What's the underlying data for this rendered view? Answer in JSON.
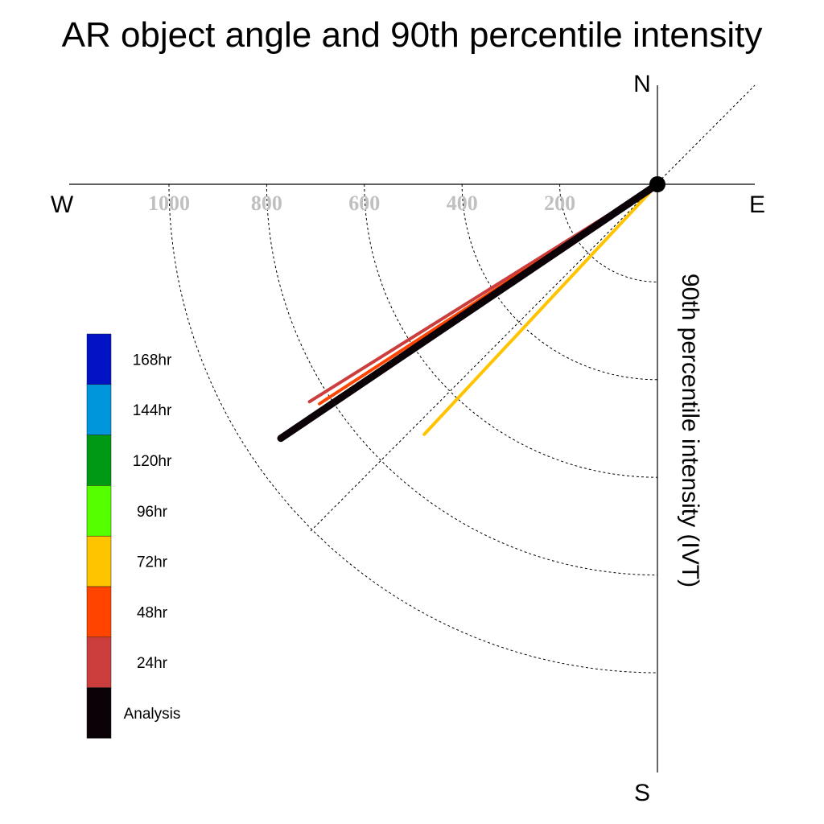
{
  "chart_data": {
    "type": "polar-vector",
    "title": "AR object angle and 90th percentile intensity",
    "ylabel": "90th percentile intensity (IVT)",
    "compass": {
      "north": "N",
      "south": "S",
      "east": "E",
      "west": "W"
    },
    "radial_ticks": [
      200,
      400,
      600,
      800,
      1000
    ],
    "radial_range": [
      0,
      1200
    ],
    "radial_circles": [
      200,
      400,
      600,
      800,
      1000
    ],
    "series": [
      {
        "name": "24hr",
        "color": "#cc3d3d",
        "magnitude": 840,
        "direction_deg": 238
      },
      {
        "name": "48hr",
        "color": "#ff4400",
        "magnitude": 825,
        "direction_deg": 237
      },
      {
        "name": "72hr",
        "color": "#ffc400",
        "magnitude": 700,
        "direction_deg": 223
      },
      {
        "name": "Analysis",
        "color": "#0b0208",
        "magnitude": 930,
        "direction_deg": 236
      }
    ],
    "legend": [
      {
        "label": "168hr",
        "color": "#0012c4"
      },
      {
        "label": "144hr",
        "color": "#0096dc"
      },
      {
        "label": "120hr",
        "color": "#009914"
      },
      {
        "label": "96hr",
        "color": "#55ff00"
      },
      {
        "label": "72hr",
        "color": "#ffc400"
      },
      {
        "label": "48hr",
        "color": "#ff4400"
      },
      {
        "label": "24hr",
        "color": "#cc3d3d"
      },
      {
        "label": "Analysis",
        "color": "#0b0208"
      }
    ]
  }
}
